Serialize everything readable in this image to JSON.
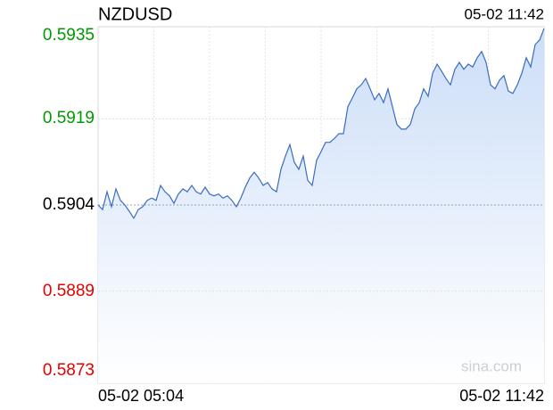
{
  "chart_data": {
    "type": "line",
    "title": "NZDUSD",
    "time": "05-02 11:42",
    "x_labels": [
      "05-02 05:04",
      "05-02 11:42"
    ],
    "watermark": "sina.com",
    "ylim": [
      0.5873,
      0.5935
    ],
    "yticks": [
      0.5935,
      0.5919,
      0.5904,
      0.5889,
      0.5873
    ],
    "reference": 0.5904,
    "up_color": "#009900",
    "down_color": "#e60000",
    "flat_color": "#000000",
    "color": "#3a6cc0",
    "grid": true,
    "values": [
      0.5904,
      0.59032,
      0.59063,
      0.59037,
      0.59068,
      0.59048,
      0.5904,
      0.59029,
      0.59017,
      0.59032,
      0.59037,
      0.59048,
      0.59052,
      0.59048,
      0.59074,
      0.59063,
      0.59056,
      0.59043,
      0.59059,
      0.59068,
      0.59063,
      0.59074,
      0.59063,
      0.59059,
      0.59071,
      0.59059,
      0.59056,
      0.59059,
      0.59052,
      0.59056,
      0.59048,
      0.59037,
      0.59052,
      0.59071,
      0.59087,
      0.59097,
      0.59087,
      0.59074,
      0.59079,
      0.59068,
      0.59063,
      0.59102,
      0.59125,
      0.59145,
      0.59114,
      0.59102,
      0.59125,
      0.59083,
      0.59074,
      0.59118,
      0.59133,
      0.59149,
      0.59149,
      0.59156,
      0.59164,
      0.59164,
      0.59211,
      0.59226,
      0.59242,
      0.59249,
      0.5926,
      0.59242,
      0.59223,
      0.59234,
      0.59218,
      0.59242,
      0.59211,
      0.5918,
      0.59172,
      0.59172,
      0.5918,
      0.59207,
      0.59218,
      0.59242,
      0.59229,
      0.59269,
      0.59285,
      0.59273,
      0.5926,
      0.59249,
      0.59276,
      0.59288,
      0.59276,
      0.59285,
      0.5928,
      0.59296,
      0.59307,
      0.59288,
      0.59249,
      0.59242,
      0.59257,
      0.59265,
      0.59238,
      0.59234,
      0.59249,
      0.59269,
      0.59296,
      0.5928,
      0.59319,
      0.59327,
      0.59347
    ]
  }
}
